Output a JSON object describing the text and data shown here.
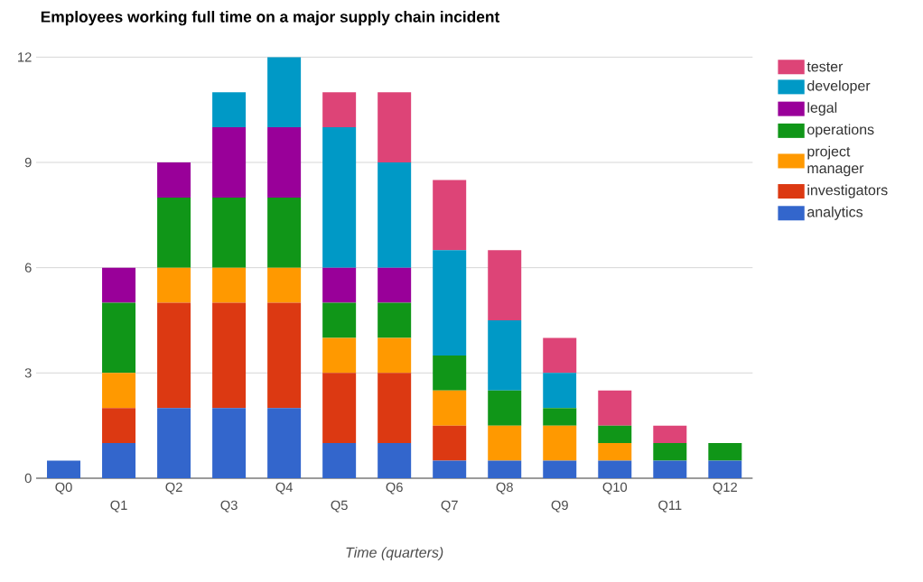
{
  "chart_data": {
    "type": "bar",
    "stacked": true,
    "title": "Employees working full time on a major supply chain incident",
    "xlabel": "Time (quarters)",
    "categories": [
      "Q0",
      "Q1",
      "Q2",
      "Q3",
      "Q4",
      "Q5",
      "Q6",
      "Q7",
      "Q8",
      "Q9",
      "Q10",
      "Q11",
      "Q12"
    ],
    "series": [
      {
        "name": "analytics",
        "color": "#3366cc",
        "values": [
          0.5,
          1,
          2,
          2,
          2,
          1,
          1,
          0.5,
          0.5,
          0.5,
          0.5,
          0.5,
          0.5
        ]
      },
      {
        "name": "investigators",
        "color": "#dc3912",
        "values": [
          0,
          1,
          3,
          3,
          3,
          2,
          2,
          1,
          0,
          0,
          0,
          0,
          0
        ]
      },
      {
        "name": "project manager",
        "color": "#ff9900",
        "values": [
          0,
          1,
          1,
          1,
          1,
          1,
          1,
          1,
          1,
          1,
          0.5,
          0,
          0
        ]
      },
      {
        "name": "operations",
        "color": "#109618",
        "values": [
          0,
          2,
          2,
          2,
          2,
          1,
          1,
          1,
          1,
          0.5,
          0.5,
          0.5,
          0.5
        ]
      },
      {
        "name": "legal",
        "color": "#990099",
        "values": [
          0,
          1,
          1,
          2,
          2,
          1,
          1,
          0,
          0,
          0,
          0,
          0,
          0
        ]
      },
      {
        "name": "developer",
        "color": "#0099c6",
        "values": [
          0,
          0,
          0,
          1,
          2,
          4,
          3,
          3,
          2,
          1,
          0,
          0,
          0
        ]
      },
      {
        "name": "tester",
        "color": "#dd4477",
        "values": [
          0,
          0,
          0,
          0,
          0,
          1,
          2,
          2,
          2,
          1,
          1,
          0.5,
          0
        ]
      }
    ],
    "ylim": [
      0,
      12
    ],
    "yticks": [
      0,
      3,
      6,
      9,
      12
    ],
    "grid": "y",
    "legend": "right"
  }
}
